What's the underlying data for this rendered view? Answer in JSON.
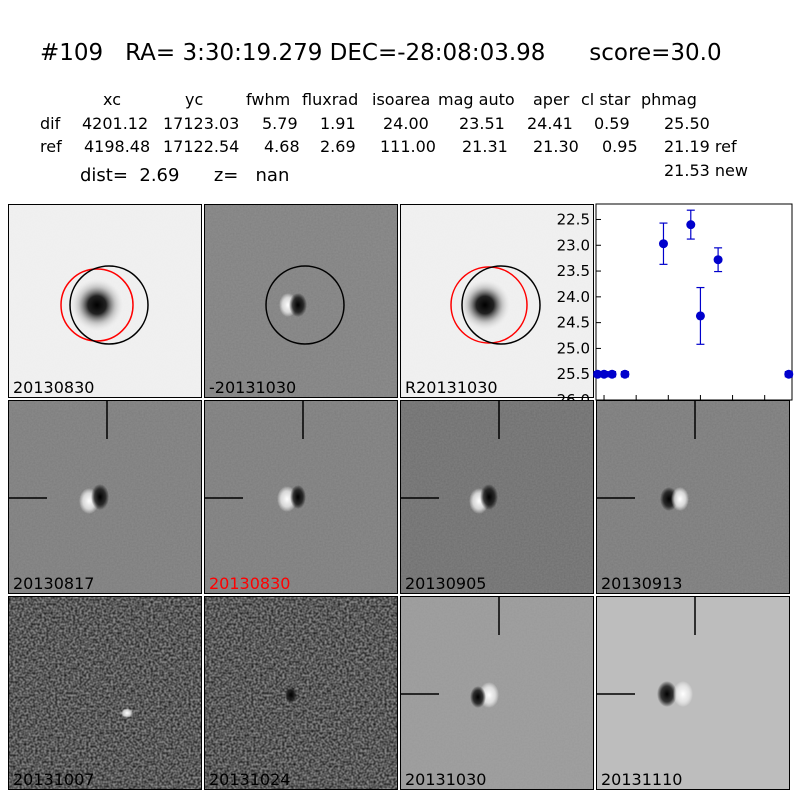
{
  "header": {
    "id": "#109",
    "coords": "RA= 3:30:19.279 DEC=-28:08:03.98",
    "score": "score=30.0"
  },
  "table": {
    "columns": [
      "xc",
      "yc",
      "fwhm",
      "fluxrad",
      "isoarea",
      "mag auto",
      "aper",
      "cl star",
      "phmag"
    ],
    "rows": [
      {
        "label": "dif",
        "values": [
          "4201.12",
          "17123.03",
          "5.79",
          "1.91",
          "24.00",
          "23.51",
          "24.41",
          "0.59",
          "25.50"
        ]
      },
      {
        "label": "ref",
        "values": [
          "4198.48",
          "17122.54",
          "4.68",
          "2.69",
          "111.00",
          "21.31",
          "21.30",
          "0.95",
          "21.19 ref"
        ]
      }
    ],
    "extra": "21.53 new"
  },
  "dist_line": {
    "dist": "dist=  2.69",
    "z": "z=   nan"
  },
  "panels": {
    "top": [
      "20130830",
      "-20131030",
      "R20131030"
    ],
    "row2": [
      "20130817",
      "20130830",
      "20130905",
      "20130913"
    ],
    "row3": [
      "20131007",
      "20131024",
      "20131030",
      "20131110"
    ]
  },
  "colors": {
    "highlight_label": "#ff0000",
    "marker": "#0000cc",
    "ref_circle": "#ff0000"
  },
  "chart_data": {
    "type": "scatter",
    "title": "",
    "xlabel": "",
    "ylabel": "",
    "xlim": [
      -5,
      117
    ],
    "ylim": [
      26.0,
      22.2
    ],
    "y_inverted": true,
    "xticks": [
      "0",
      "20",
      "40",
      "60",
      "80",
      "100"
    ],
    "yticks": [
      "22.5",
      "23.0",
      "23.5",
      "24.0",
      "24.5",
      "25.0",
      "25.5",
      "26.0"
    ],
    "points": [
      {
        "x": -4,
        "y": 25.5,
        "err": 0.05
      },
      {
        "x": 0,
        "y": 25.5,
        "err": 0.05
      },
      {
        "x": 5,
        "y": 25.5,
        "err": 0.05
      },
      {
        "x": 13,
        "y": 25.5,
        "err": 0.05
      },
      {
        "x": 37,
        "y": 22.97,
        "err": 0.4
      },
      {
        "x": 54,
        "y": 22.6,
        "err": 0.28
      },
      {
        "x": 60,
        "y": 24.37,
        "err": 0.55
      },
      {
        "x": 71,
        "y": 23.28,
        "err": 0.23
      },
      {
        "x": 115,
        "y": 25.5,
        "err": 0.05
      }
    ]
  }
}
